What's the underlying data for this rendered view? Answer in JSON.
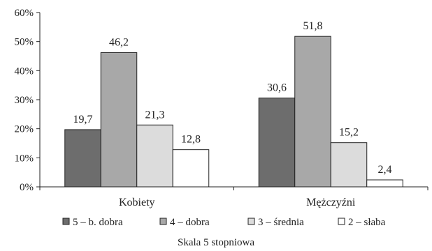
{
  "chart_data": {
    "type": "bar",
    "categories": [
      "Kobiety",
      "Mężczyźni"
    ],
    "series": [
      {
        "name": "5 – b. dobra",
        "values": [
          19.7,
          30.6
        ],
        "labels": [
          "19,7",
          "30,6"
        ],
        "color": "#6d6d6d"
      },
      {
        "name": "4 – dobra",
        "values": [
          46.2,
          51.8
        ],
        "labels": [
          "46,2",
          "51,8"
        ],
        "color": "#a8a8a8"
      },
      {
        "name": "3 – średnia",
        "values": [
          21.3,
          15.2
        ],
        "labels": [
          "21,3",
          "15,2"
        ],
        "color": "#dcdcdc"
      },
      {
        "name": "2 – słaba",
        "values": [
          12.8,
          2.4
        ],
        "labels": [
          "12,8",
          "2,4"
        ],
        "color": "#ffffff"
      }
    ],
    "yticks": [
      "0%",
      "10%",
      "20%",
      "30%",
      "40%",
      "50%",
      "60%"
    ],
    "ylim": [
      0,
      60
    ],
    "xlabel": "Skala 5 stopniowa",
    "ylabel": "",
    "title": "",
    "grid": false,
    "legend_position": "bottom"
  }
}
